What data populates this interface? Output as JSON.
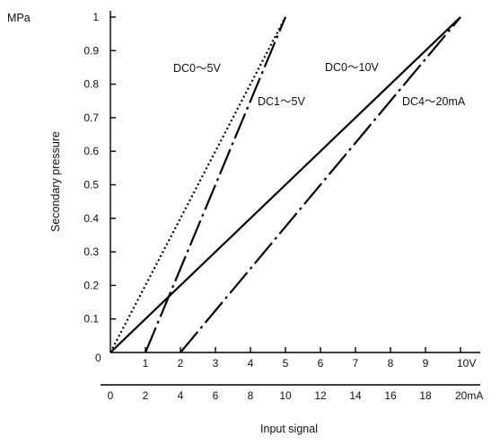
{
  "chart_data": {
    "type": "line",
    "title": "",
    "ylabel": "Secondary pressure",
    "yunit": "MPa",
    "xlabel": "Input signal",
    "ylim": [
      0,
      1
    ],
    "y_ticks": [
      "0",
      "0.1",
      "0.2",
      "0.3",
      "0.4",
      "0.5",
      "0.6",
      "0.7",
      "0.8",
      "0.9",
      "1"
    ],
    "x_axis_voltage": {
      "unit": "V",
      "range": [
        0,
        10
      ],
      "ticks": [
        "1",
        "2",
        "3",
        "4",
        "5",
        "6",
        "7",
        "8",
        "9",
        "10V"
      ]
    },
    "x_axis_current": {
      "unit": "mA",
      "range": [
        0,
        20
      ],
      "ticks": [
        "0",
        "2",
        "4",
        "6",
        "8",
        "10",
        "12",
        "14",
        "16",
        "18",
        "20mA"
      ]
    },
    "grid": false,
    "series": [
      {
        "name": "DC0～5V",
        "axis": "V",
        "style": "dotted",
        "x": [
          0,
          5
        ],
        "y": [
          0,
          1
        ]
      },
      {
        "name": "DC1～5V",
        "axis": "V",
        "style": "dash-dot",
        "x": [
          1,
          5
        ],
        "y": [
          0,
          1
        ]
      },
      {
        "name": "DC0～10V",
        "axis": "V",
        "style": "solid",
        "x": [
          0,
          10
        ],
        "y": [
          0,
          1
        ]
      },
      {
        "name": "DC4～20mA",
        "axis": "mA",
        "style": "dash-dot",
        "x": [
          4,
          20
        ],
        "y": [
          0,
          1
        ]
      }
    ]
  }
}
